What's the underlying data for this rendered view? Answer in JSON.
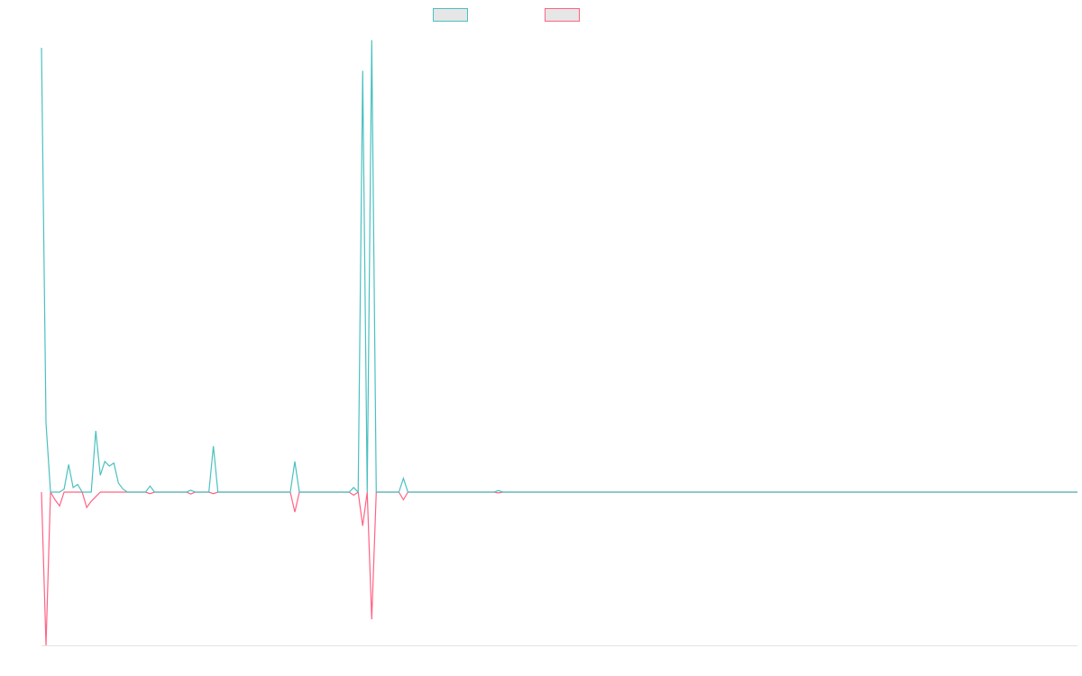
{
  "chart_data": {
    "type": "area",
    "title": "",
    "xlabel": "",
    "ylabel": "",
    "ylim": [
      -1000,
      3000
    ],
    "x_count": 230,
    "grid": false,
    "legend_position": "top-center",
    "series": [
      {
        "color": "#4bc0c0",
        "fill": false,
        "points": [
          [
            0,
            2900
          ],
          [
            1,
            450
          ],
          [
            2,
            0
          ],
          [
            3,
            0
          ],
          [
            4,
            0
          ],
          [
            5,
            20
          ],
          [
            6,
            180
          ],
          [
            7,
            30
          ],
          [
            8,
            50
          ],
          [
            9,
            0
          ],
          [
            10,
            0
          ],
          [
            11,
            0
          ],
          [
            12,
            400
          ],
          [
            13,
            110
          ],
          [
            14,
            200
          ],
          [
            15,
            170
          ],
          [
            16,
            190
          ],
          [
            17,
            60
          ],
          [
            18,
            20
          ],
          [
            19,
            0
          ],
          [
            20,
            0
          ],
          [
            22,
            0
          ],
          [
            23,
            0
          ],
          [
            24,
            40
          ],
          [
            25,
            0
          ],
          [
            26,
            0
          ],
          [
            32,
            0
          ],
          [
            33,
            12
          ],
          [
            34,
            0
          ],
          [
            37,
            0
          ],
          [
            38,
            300
          ],
          [
            39,
            0
          ],
          [
            55,
            0
          ],
          [
            56,
            200
          ],
          [
            57,
            0
          ],
          [
            68,
            0
          ],
          [
            69,
            30
          ],
          [
            70,
            0
          ],
          [
            71,
            2750
          ],
          [
            72,
            0
          ],
          [
            73,
            2950
          ],
          [
            74,
            0
          ],
          [
            79,
            0
          ],
          [
            80,
            90
          ],
          [
            81,
            0
          ],
          [
            100,
            0
          ],
          [
            101,
            10
          ],
          [
            102,
            0
          ],
          [
            229,
            0
          ]
        ]
      },
      {
        "color": "#ff6384",
        "fill": false,
        "points": [
          [
            0,
            0
          ],
          [
            1,
            -1000
          ],
          [
            2,
            0
          ],
          [
            3,
            -50
          ],
          [
            4,
            -90
          ],
          [
            5,
            0
          ],
          [
            6,
            0
          ],
          [
            7,
            0
          ],
          [
            8,
            0
          ],
          [
            9,
            0
          ],
          [
            10,
            -100
          ],
          [
            11,
            -60
          ],
          [
            12,
            -30
          ],
          [
            13,
            0
          ],
          [
            22,
            0
          ],
          [
            23,
            0
          ],
          [
            24,
            -10
          ],
          [
            25,
            0
          ],
          [
            32,
            0
          ],
          [
            33,
            -12
          ],
          [
            34,
            0
          ],
          [
            37,
            0
          ],
          [
            38,
            -10
          ],
          [
            39,
            0
          ],
          [
            55,
            0
          ],
          [
            56,
            -130
          ],
          [
            57,
            0
          ],
          [
            68,
            0
          ],
          [
            69,
            -20
          ],
          [
            70,
            0
          ],
          [
            71,
            -220
          ],
          [
            72,
            0
          ],
          [
            73,
            -830
          ],
          [
            74,
            0
          ],
          [
            79,
            0
          ],
          [
            80,
            -50
          ],
          [
            81,
            0
          ],
          [
            100,
            0
          ],
          [
            101,
            -5
          ],
          [
            102,
            0
          ],
          [
            229,
            0
          ]
        ]
      }
    ]
  }
}
